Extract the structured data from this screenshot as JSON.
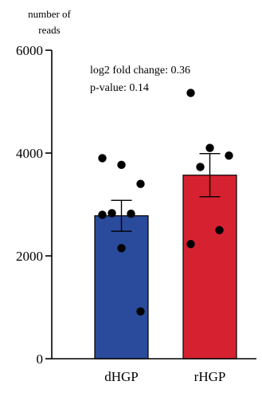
{
  "chart_data": {
    "type": "bar",
    "ylabel": "number of\nreads",
    "ylim": [
      0,
      6000
    ],
    "yticks": [
      0,
      2000,
      4000,
      6000
    ],
    "categories": [
      "dHGP",
      "rHGP"
    ],
    "values": [
      2780,
      3570
    ],
    "error": [
      300,
      420
    ],
    "colors": [
      "#2A4B9B",
      "#D62230"
    ],
    "points": [
      [
        3900,
        3770,
        3400,
        2830,
        2820,
        2800,
        2150,
        920
      ],
      [
        5170,
        4100,
        3950,
        3730,
        2500,
        2230
      ]
    ],
    "annotations": [
      "log2 fold change: 0.36",
      "p-value: 0.14"
    ]
  }
}
